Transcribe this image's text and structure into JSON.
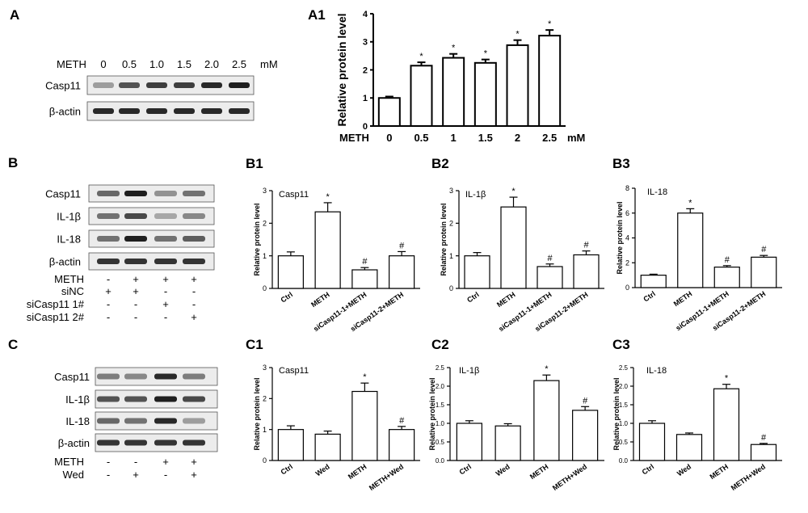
{
  "panel_letters": {
    "A": "A",
    "B": "B",
    "C": "C"
  },
  "chart_data": [
    {
      "id": "A1",
      "panel": "A1",
      "type": "bar",
      "ylabel": "Relative protein level",
      "xprefix": "METH",
      "xunit": "mM",
      "categories": [
        "0",
        "0.5",
        "1",
        "1.5",
        "2",
        "2.5"
      ],
      "values": [
        1.0,
        2.15,
        2.43,
        2.25,
        2.88,
        3.22
      ],
      "errors": [
        0.05,
        0.12,
        0.14,
        0.12,
        0.18,
        0.2
      ],
      "marks": [
        "",
        "*",
        "*",
        "*",
        "*",
        "*"
      ],
      "ylim": [
        0,
        4
      ],
      "yticks": [
        0,
        1,
        2,
        3,
        4
      ],
      "grid": false
    },
    {
      "id": "B1",
      "panel": "B1",
      "inner_title": "Casp11",
      "type": "bar",
      "ylabel": "Relative protein level",
      "categories": [
        "Ctrl",
        "METH",
        "siCasp11-1+METH",
        "siCasp11-2+METH"
      ],
      "values": [
        1.0,
        2.35,
        0.57,
        1.0
      ],
      "errors": [
        0.12,
        0.28,
        0.07,
        0.13
      ],
      "marks": [
        "",
        "*",
        "#",
        "#"
      ],
      "ylim": [
        0,
        3
      ],
      "yticks": [
        0,
        1,
        2,
        3
      ],
      "grid": false
    },
    {
      "id": "B2",
      "panel": "B2",
      "inner_title": "IL-1β",
      "type": "bar",
      "ylabel": "Relative protein level",
      "categories": [
        "Ctrl",
        "METH",
        "siCasp11-1+METH",
        "siCasp11-2+METH"
      ],
      "values": [
        1.0,
        2.5,
        0.67,
        1.03
      ],
      "errors": [
        0.1,
        0.3,
        0.08,
        0.12
      ],
      "marks": [
        "",
        "*",
        "#",
        "#"
      ],
      "ylim": [
        0,
        3
      ],
      "yticks": [
        0,
        1,
        2,
        3
      ],
      "grid": false
    },
    {
      "id": "B3",
      "panel": "B3",
      "inner_title": "IL-18",
      "type": "bar",
      "ylabel": "Relative protein level",
      "categories": [
        "Ctrl",
        "METH",
        "siCasp11-1+METH",
        "siCasp11-2+METH"
      ],
      "values": [
        1.0,
        6.0,
        1.65,
        2.45
      ],
      "errors": [
        0.08,
        0.35,
        0.12,
        0.14
      ],
      "marks": [
        "",
        "*",
        "#",
        "#"
      ],
      "ylim": [
        0,
        8
      ],
      "yticks": [
        0,
        2,
        4,
        6,
        8
      ],
      "grid": false
    },
    {
      "id": "C1",
      "panel": "C1",
      "inner_title": "Casp11",
      "type": "bar",
      "ylabel": "Relative protein level",
      "categories": [
        "Ctrl",
        "Wed",
        "METH",
        "METH+Wed"
      ],
      "values": [
        1.0,
        0.85,
        2.23,
        1.0
      ],
      "errors": [
        0.12,
        0.1,
        0.27,
        0.1
      ],
      "marks": [
        "",
        "",
        "*",
        "#"
      ],
      "ylim": [
        0,
        3
      ],
      "yticks": [
        0,
        1,
        2,
        3
      ],
      "grid": false
    },
    {
      "id": "C2",
      "panel": "C2",
      "inner_title": "IL-1β",
      "type": "bar",
      "ylabel": "Relative protein level",
      "categories": [
        "Ctrl",
        "Wed",
        "METH",
        "METH+Wed"
      ],
      "values": [
        1.0,
        0.93,
        2.15,
        1.35
      ],
      "errors": [
        0.07,
        0.06,
        0.15,
        0.1
      ],
      "marks": [
        "",
        "",
        "*",
        "#"
      ],
      "ylim": [
        0,
        2.5
      ],
      "yticks": [
        0.0,
        0.5,
        1.0,
        1.5,
        2.0,
        2.5
      ],
      "grid": false
    },
    {
      "id": "C3",
      "panel": "C3",
      "inner_title": "IL-18",
      "type": "bar",
      "ylabel": "Relative protein level",
      "categories": [
        "Ctrl",
        "Wed",
        "METH",
        "METH+Wed"
      ],
      "values": [
        1.0,
        0.7,
        1.93,
        0.43
      ],
      "errors": [
        0.07,
        0.04,
        0.12,
        0.03
      ],
      "marks": [
        "",
        "",
        "*",
        "#"
      ],
      "ylim": [
        0,
        2.5
      ],
      "yticks": [
        0.0,
        0.5,
        1.0,
        1.5,
        2.0,
        2.5
      ],
      "grid": false
    }
  ],
  "blots": {
    "A": {
      "header_label": "METH",
      "header_values": [
        "0",
        "0.5",
        "1.0",
        "1.5",
        "2.0",
        "2.5"
      ],
      "header_unit": "mM",
      "rows": [
        {
          "name": "Casp11",
          "intensity": [
            0.35,
            0.7,
            0.8,
            0.8,
            0.9,
            0.95
          ]
        },
        {
          "name": "β-actin",
          "intensity": [
            0.9,
            0.9,
            0.9,
            0.9,
            0.9,
            0.9
          ]
        }
      ]
    },
    "B": {
      "rows": [
        {
          "name": "Casp11",
          "intensity": [
            0.6,
            0.95,
            0.4,
            0.55
          ]
        },
        {
          "name": "IL-1β",
          "intensity": [
            0.55,
            0.75,
            0.3,
            0.45
          ]
        },
        {
          "name": "IL-18",
          "intensity": [
            0.55,
            0.95,
            0.55,
            0.65
          ]
        },
        {
          "name": "β-actin",
          "intensity": [
            0.85,
            0.85,
            0.85,
            0.85
          ]
        }
      ],
      "conditions": [
        {
          "name": "METH",
          "values": [
            "-",
            "+",
            "+",
            "+"
          ]
        },
        {
          "name": "siNC",
          "values": [
            "+",
            "+",
            "-",
            "-"
          ]
        },
        {
          "name": "siCasp11 1#",
          "values": [
            "-",
            "-",
            "+",
            "-"
          ]
        },
        {
          "name": "siCasp11 2#",
          "values": [
            "-",
            "-",
            "-",
            "+"
          ]
        }
      ]
    },
    "C": {
      "rows": [
        {
          "name": "Casp11",
          "intensity": [
            0.5,
            0.45,
            0.9,
            0.5
          ]
        },
        {
          "name": "IL-1β",
          "intensity": [
            0.7,
            0.7,
            0.95,
            0.75
          ]
        },
        {
          "name": "IL-18",
          "intensity": [
            0.6,
            0.55,
            0.9,
            0.35
          ]
        },
        {
          "name": "β-actin",
          "intensity": [
            0.85,
            0.85,
            0.85,
            0.85
          ]
        }
      ],
      "conditions": [
        {
          "name": "METH",
          "values": [
            "-",
            "-",
            "+",
            "+"
          ]
        },
        {
          "name": "Wed",
          "values": [
            "-",
            "+",
            "-",
            "+"
          ]
        }
      ]
    }
  }
}
